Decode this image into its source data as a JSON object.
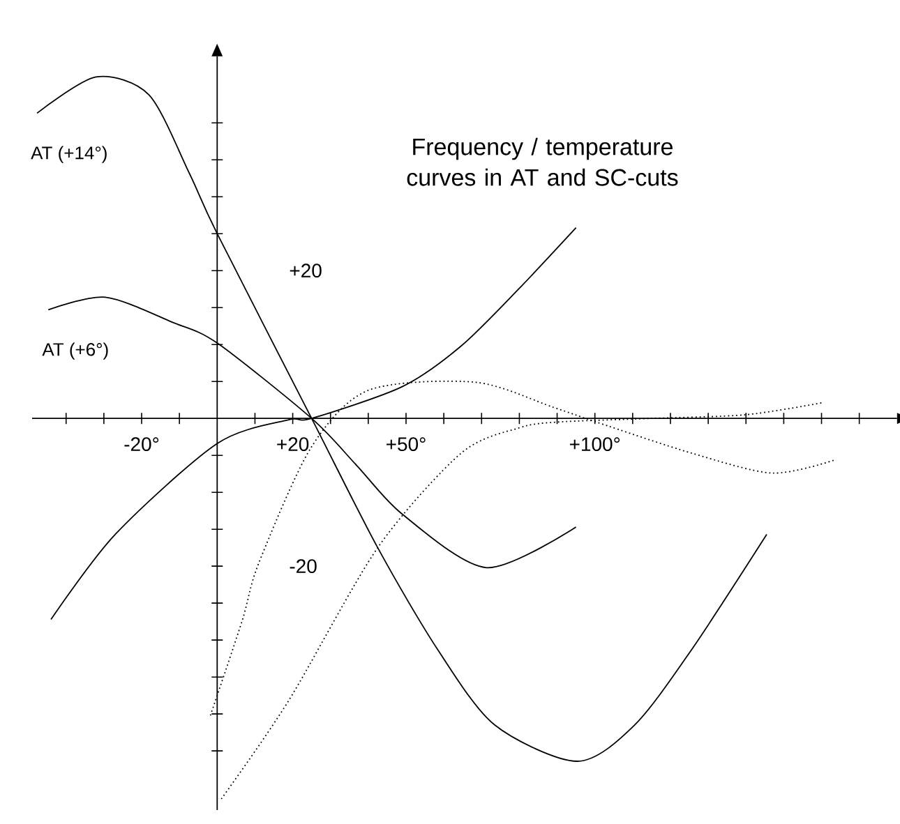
{
  "chart_data": {
    "type": "line",
    "title": "Frequency / temperature curves in AT and SC-cuts",
    "marker": "none",
    "xlim": [
      -49,
      180
    ],
    "ylim": [
      -53,
      49
    ],
    "xticks": [
      {
        "value": -40,
        "label": null
      },
      {
        "value": -30,
        "label": null
      },
      {
        "value": -20,
        "label": "-20°"
      },
      {
        "value": -10,
        "label": null
      },
      {
        "value": 10,
        "label": null
      },
      {
        "value": 20,
        "label": "+20"
      },
      {
        "value": 30,
        "label": null
      },
      {
        "value": 40,
        "label": null
      },
      {
        "value": 50,
        "label": "+50°"
      },
      {
        "value": 60,
        "label": null
      },
      {
        "value": 70,
        "label": null
      },
      {
        "value": 80,
        "label": null
      },
      {
        "value": 90,
        "label": null
      },
      {
        "value": 100,
        "label": "+100°"
      },
      {
        "value": 110,
        "label": null
      },
      {
        "value": 120,
        "label": null
      },
      {
        "value": 130,
        "label": null
      },
      {
        "value": 140,
        "label": null
      },
      {
        "value": 150,
        "label": null
      },
      {
        "value": 160,
        "label": null
      },
      {
        "value": 170,
        "label": null
      }
    ],
    "yticks": [
      {
        "value": -45,
        "label": null
      },
      {
        "value": -40,
        "label": null
      },
      {
        "value": -35,
        "label": null
      },
      {
        "value": -30,
        "label": null
      },
      {
        "value": -25,
        "label": null
      },
      {
        "value": -20,
        "label": "-20"
      },
      {
        "value": -15,
        "label": null
      },
      {
        "value": -10,
        "label": null
      },
      {
        "value": -5,
        "label": null
      },
      {
        "value": 5,
        "label": null
      },
      {
        "value": 10,
        "label": null
      },
      {
        "value": 15,
        "label": null
      },
      {
        "value": 20,
        "label": "+20"
      },
      {
        "value": 25,
        "label": null
      },
      {
        "value": 30,
        "label": null
      },
      {
        "value": 35,
        "label": null
      },
      {
        "value": 40,
        "label": null
      }
    ],
    "series": [
      {
        "name": "AT (+14°)",
        "color": "#000000",
        "line_style": "solid",
        "x": [
          -47.7,
          -32.1,
          -18.1,
          -7.4,
          0,
          25,
          42.5,
          58.4,
          73.5,
          95.3,
          110.5,
          125.6,
          145.5
        ],
        "values": [
          41.3,
          46.2,
          43.8,
          33.2,
          25,
          0,
          -17.5,
          -31.3,
          -41.5,
          -46.4,
          -41.5,
          -31.3,
          -15.7
        ]
      },
      {
        "name": "AT (+6°)",
        "color": "#000000",
        "line_style": "solid",
        "x": [
          -44.7,
          -29.6,
          -11.8,
          0,
          25,
          37,
          49.1,
          71.3,
          95
        ],
        "values": [
          14.7,
          16.4,
          13.0,
          10.2,
          0,
          -6.4,
          -13.0,
          -20.2,
          -14.7
        ]
      },
      {
        "color": "#000000",
        "line_style": "solid",
        "x": [
          -44,
          -27,
          0,
          18.8,
          25,
          49,
          64.6,
          79.8,
          95
        ],
        "values": [
          -27.2,
          -15.7,
          -3.4,
          -0.2,
          0,
          4.3,
          9.8,
          17.5,
          25.8
        ]
      },
      {
        "color": "#000000",
        "line_style": "dotted",
        "x": [
          -1.8,
          6.6,
          11,
          24.8,
          40,
          68.3,
          89,
          101,
          125.6,
          147,
          163.7
        ],
        "values": [
          -40.2,
          -27.4,
          -19.6,
          -4.0,
          3.8,
          4.9,
          1.5,
          -0.6,
          -4.7,
          -7.4,
          -5.6
        ]
      },
      {
        "color": "#000000",
        "line_style": "dotted",
        "x": [
          1.1,
          18.8,
          42.5,
          64.6,
          79.8,
          90,
          115,
          140,
          160
        ],
        "values": [
          -51.5,
          -38.3,
          -17.5,
          -4.7,
          -1.3,
          -0.5,
          0,
          0.5,
          2.1
        ]
      }
    ]
  }
}
